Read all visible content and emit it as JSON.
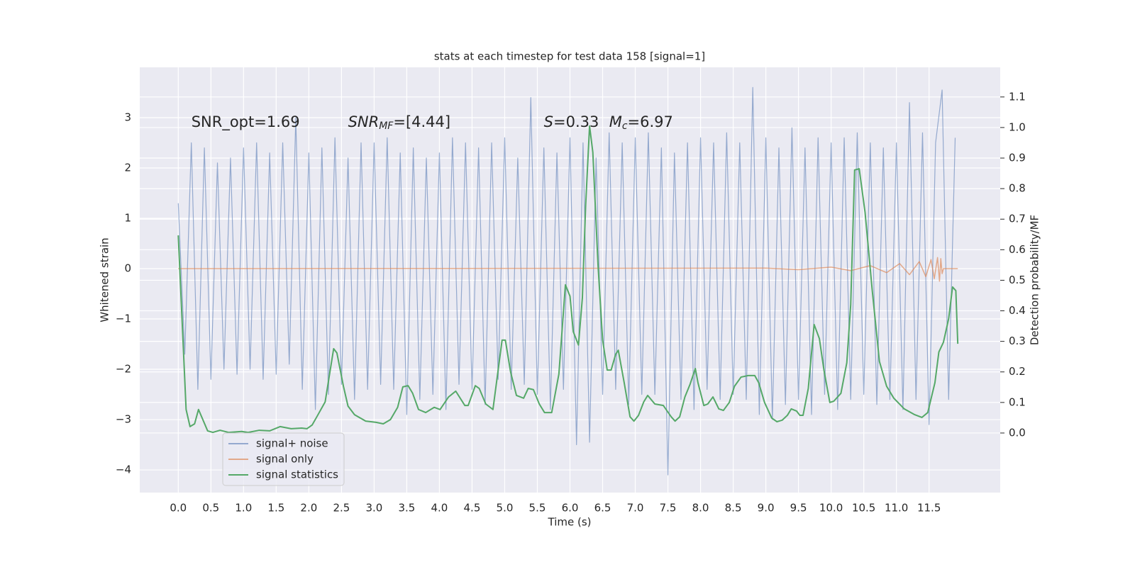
{
  "chart_data": {
    "type": "line",
    "title": "stats at each timestep for test data 158 [signal=1]",
    "xlabel": "Time (s)",
    "ylabel": "Whitened strain",
    "y2label": "Detection probability/MF",
    "xlim": [
      -0.59,
      12.59
    ],
    "ylim": [
      -4.45,
      4.0
    ],
    "y2lim": [
      -0.195,
      1.197
    ],
    "xticks": [
      {
        "value": 0,
        "label": "0.0"
      },
      {
        "value": 0.5,
        "label": "0.5"
      },
      {
        "value": 1,
        "label": "1.0"
      },
      {
        "value": 1.5,
        "label": "1.5"
      },
      {
        "value": 2,
        "label": "2.0"
      },
      {
        "value": 2.5,
        "label": "2.5"
      },
      {
        "value": 3,
        "label": "3.0"
      },
      {
        "value": 3.5,
        "label": "3.5"
      },
      {
        "value": 4,
        "label": "4.0"
      },
      {
        "value": 4.5,
        "label": "4.5"
      },
      {
        "value": 5,
        "label": "5.0"
      },
      {
        "value": 5.5,
        "label": "5.5"
      },
      {
        "value": 6,
        "label": "6.0"
      },
      {
        "value": 6.5,
        "label": "6.5"
      },
      {
        "value": 7,
        "label": "7.0"
      },
      {
        "value": 7.5,
        "label": "7.5"
      },
      {
        "value": 8,
        "label": "8.0"
      },
      {
        "value": 8.5,
        "label": "8.5"
      },
      {
        "value": 9,
        "label": "9.0"
      },
      {
        "value": 9.5,
        "label": "9.5"
      },
      {
        "value": 10,
        "label": "10.0"
      },
      {
        "value": 10.5,
        "label": "10.5"
      },
      {
        "value": 11,
        "label": "11.0"
      },
      {
        "value": 11.5,
        "label": "11.5"
      }
    ],
    "yticks": [
      {
        "value": -4,
        "label": "−4"
      },
      {
        "value": -3,
        "label": "−3"
      },
      {
        "value": -2,
        "label": "−2"
      },
      {
        "value": -1,
        "label": "−1"
      },
      0,
      1,
      2,
      3
    ],
    "y2ticks": [
      {
        "value": 0,
        "label": "0.0"
      },
      {
        "value": 0.1,
        "label": "0.1"
      },
      {
        "value": 0.2,
        "label": "0.2"
      },
      {
        "value": 0.3,
        "label": "0.3"
      },
      {
        "value": 0.4,
        "label": "0.4"
      },
      {
        "value": 0.5,
        "label": "0.5"
      },
      {
        "value": 0.6,
        "label": "0.6"
      },
      {
        "value": 0.7,
        "label": "0.7"
      },
      {
        "value": 0.8,
        "label": "0.8"
      },
      {
        "value": 0.9,
        "label": "0.9"
      },
      {
        "value": 1,
        "label": "1.0"
      },
      {
        "value": 1.1,
        "label": "1.1"
      }
    ],
    "grid": true,
    "legend": "lower left",
    "annotations": [
      {
        "text": "SNR_opt=1.69"
      },
      {
        "base": "SNR",
        "sub": "MF",
        "text": "=[4.44]"
      },
      {
        "base": "S",
        "text": "=0.33"
      },
      {
        "base": "M",
        "sub": "c",
        "text": "=6.97"
      }
    ],
    "series": [
      {
        "name": "signal+ noise",
        "color": "#4c72b0",
        "x": [
          0,
          0.1,
          0.2,
          0.3,
          0.4,
          0.5,
          0.6,
          0.7,
          0.8,
          0.9,
          1,
          1.1,
          1.2,
          1.3,
          1.4,
          1.5,
          1.6,
          1.7,
          1.8,
          1.9,
          2,
          2.1,
          2.2,
          2.3,
          2.4,
          2.5,
          2.6,
          2.7,
          2.8,
          2.9,
          3,
          3.1,
          3.2,
          3.3,
          3.4,
          3.5,
          3.6,
          3.7,
          3.8,
          3.9,
          4,
          4.1,
          4.2,
          4.3,
          4.4,
          4.5,
          4.6,
          4.7,
          4.8,
          4.9,
          5,
          5.1,
          5.2,
          5.3,
          5.4,
          5.5,
          5.6,
          5.7,
          5.8,
          5.9,
          6,
          6.1,
          6.2,
          6.3,
          6.4,
          6.5,
          6.6,
          6.7,
          6.8,
          6.9,
          7,
          7.1,
          7.2,
          7.3,
          7.4,
          7.5,
          7.6,
          7.7,
          7.8,
          7.9,
          8,
          8.1,
          8.2,
          8.3,
          8.4,
          8.5,
          8.6,
          8.7,
          8.8,
          8.9,
          9,
          9.1,
          9.2,
          9.3,
          9.4,
          9.5,
          9.6,
          9.7,
          9.8,
          9.9,
          10,
          10.1,
          10.2,
          10.3,
          10.4,
          10.5,
          10.6,
          10.7,
          10.8,
          10.9,
          11,
          11.1,
          11.2,
          11.3,
          11.4,
          11.5,
          11.6,
          11.7,
          11.8,
          11.9
        ],
        "values": [
          1.3,
          -1.7,
          2.5,
          -2.4,
          2.4,
          -2.2,
          2.1,
          -2.0,
          2.2,
          -2.1,
          2.4,
          -2.0,
          2.5,
          -2.2,
          2.3,
          -2.1,
          2.5,
          -1.9,
          3.0,
          -2.4,
          2.3,
          -2.8,
          2.4,
          -2.5,
          2.6,
          -2.3,
          2.2,
          -2.6,
          2.5,
          -2.4,
          2.5,
          -2.3,
          2.6,
          -2.4,
          2.3,
          -2.9,
          2.4,
          -2.6,
          2.2,
          -2.5,
          2.3,
          -2.8,
          2.6,
          -2.3,
          2.5,
          -2.4,
          2.4,
          -2.7,
          2.5,
          -2.2,
          2.6,
          -2.4,
          2.2,
          -2.3,
          3.4,
          -2.5,
          2.4,
          -2.8,
          2.3,
          -2.4,
          2.6,
          -3.5,
          2.5,
          -3.45,
          2.2,
          -2.5,
          2.7,
          -2.4,
          2.5,
          -2.7,
          2.6,
          -2.5,
          2.7,
          -2.5,
          2.4,
          -4.1,
          2.3,
          -2.6,
          2.5,
          -2.8,
          2.6,
          -2.4,
          2.5,
          -2.6,
          2.7,
          -2.5,
          2.5,
          -2.6,
          3.6,
          -2.9,
          2.6,
          -3.0,
          2.4,
          -2.7,
          2.8,
          -2.6,
          2.4,
          -2.9,
          2.6,
          -2.5,
          2.5,
          -2.8,
          2.6,
          -2.6,
          2.7,
          -2.5,
          2.5,
          -2.7,
          2.4,
          -2.6,
          2.5,
          -2.8,
          3.3,
          -2.6,
          2.7,
          -3.1,
          2.5,
          3.55,
          -2.6,
          2.6
        ]
      },
      {
        "name": "signal only",
        "color": "#dd8452",
        "x": [
          0,
          9.0,
          9.5,
          10.0,
          10.3,
          10.6,
          10.85,
          11.05,
          11.2,
          11.35,
          11.45,
          11.53,
          11.58,
          11.63,
          11.66,
          11.68,
          11.7,
          11.72,
          11.94
        ],
        "values": [
          0,
          0.01,
          -0.02,
          0.03,
          -0.04,
          0.06,
          -0.08,
          0.1,
          -0.12,
          0.14,
          -0.16,
          0.18,
          -0.2,
          0.22,
          -0.25,
          0.2,
          -0.1,
          0,
          0
        ]
      },
      {
        "name": "signal statistics",
        "color": "#55a868",
        "axis": "y2",
        "x": [
          0,
          0.12,
          0.18,
          0.25,
          0.31,
          0.45,
          0.53,
          0.64,
          0.77,
          0.97,
          1.07,
          1.24,
          1.4,
          1.56,
          1.73,
          1.89,
          1.97,
          2.05,
          2.13,
          2.25,
          2.38,
          2.43,
          2.53,
          2.6,
          2.7,
          2.87,
          3.03,
          3.14,
          3.25,
          3.36,
          3.44,
          3.52,
          3.59,
          3.68,
          3.79,
          3.92,
          4.01,
          4.14,
          4.25,
          4.39,
          4.44,
          4.55,
          4.61,
          4.71,
          4.82,
          4.96,
          5.01,
          5.09,
          5.18,
          5.29,
          5.36,
          5.44,
          5.53,
          5.61,
          5.72,
          5.83,
          5.93,
          6.0,
          6.05,
          6.13,
          6.19,
          6.24,
          6.3,
          6.35,
          6.43,
          6.5,
          6.57,
          6.63,
          6.7,
          6.74,
          6.83,
          6.92,
          6.98,
          7.05,
          7.13,
          7.19,
          7.3,
          7.43,
          7.55,
          7.61,
          7.68,
          7.76,
          7.84,
          7.92,
          7.96,
          8.05,
          8.11,
          8.19,
          8.28,
          8.35,
          8.44,
          8.52,
          8.62,
          8.73,
          8.83,
          8.89,
          8.98,
          9.09,
          9.17,
          9.25,
          9.33,
          9.39,
          9.47,
          9.52,
          9.57,
          9.65,
          9.74,
          9.82,
          9.89,
          9.98,
          10.04,
          10.15,
          10.24,
          10.3,
          10.36,
          10.43,
          10.52,
          10.63,
          10.74,
          10.85,
          10.96,
          11.12,
          11.28,
          11.39,
          11.48,
          11.59,
          11.65,
          11.72,
          11.8,
          11.86,
          11.91,
          11.94
        ],
        "values": [
          0.647,
          0.077,
          0.021,
          0.03,
          0.077,
          0.007,
          0.002,
          0.009,
          0.002,
          0.005,
          0.002,
          0.009,
          0.007,
          0.021,
          0.014,
          0.016,
          0.014,
          0.026,
          0.056,
          0.102,
          0.276,
          0.262,
          0.153,
          0.088,
          0.06,
          0.039,
          0.035,
          0.03,
          0.044,
          0.084,
          0.151,
          0.155,
          0.13,
          0.077,
          0.067,
          0.084,
          0.077,
          0.118,
          0.137,
          0.09,
          0.09,
          0.155,
          0.146,
          0.095,
          0.077,
          0.304,
          0.304,
          0.2,
          0.123,
          0.114,
          0.146,
          0.142,
          0.095,
          0.067,
          0.067,
          0.193,
          0.485,
          0.448,
          0.332,
          0.288,
          0.443,
          0.745,
          1.005,
          0.919,
          0.548,
          0.304,
          0.206,
          0.206,
          0.258,
          0.271,
          0.165,
          0.053,
          0.039,
          0.058,
          0.102,
          0.123,
          0.095,
          0.09,
          0.053,
          0.039,
          0.053,
          0.118,
          0.16,
          0.211,
          0.165,
          0.09,
          0.095,
          0.118,
          0.079,
          0.074,
          0.1,
          0.153,
          0.183,
          0.188,
          0.188,
          0.165,
          0.1,
          0.049,
          0.037,
          0.042,
          0.058,
          0.079,
          0.072,
          0.058,
          0.058,
          0.146,
          0.355,
          0.309,
          0.206,
          0.1,
          0.104,
          0.13,
          0.23,
          0.42,
          0.861,
          0.865,
          0.722,
          0.466,
          0.234,
          0.153,
          0.114,
          0.079,
          0.06,
          0.051,
          0.067,
          0.165,
          0.265,
          0.297,
          0.374,
          0.478,
          0.466,
          0.292
        ]
      }
    ]
  }
}
